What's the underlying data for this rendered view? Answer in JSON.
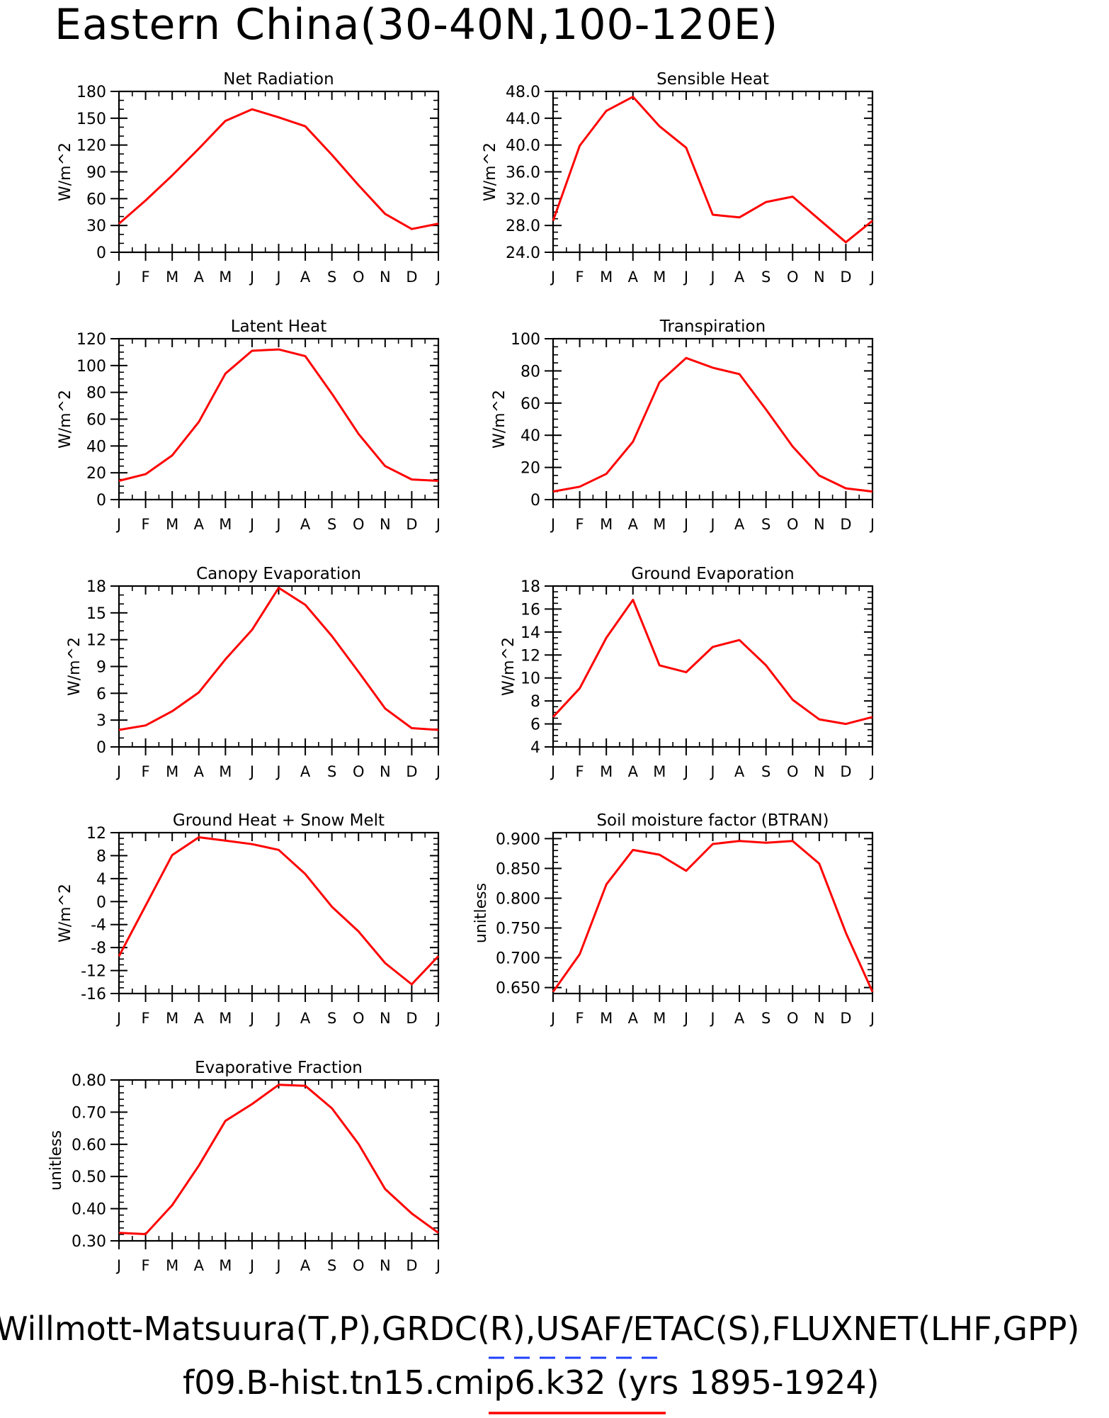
{
  "figure": {
    "title": "Eastern China(30-40N,100-120E)",
    "footer_line1": "Willmott-Matsuura(T,P),GRDC(R),USAF/ETAC(S),FLUXNET(LHF,GPP)",
    "footer_line2": "f09.B-hist.tn15.cmip6.k32 (yrs 1895-1924)",
    "line_color": "#ff0000",
    "dash_color": "#1f3fff"
  },
  "chart_data": [
    {
      "type": "line",
      "title": "Net Radiation",
      "ylabel": "W/m^2",
      "categories": [
        "J",
        "F",
        "M",
        "A",
        "M",
        "J",
        "J",
        "A",
        "S",
        "O",
        "N",
        "D",
        "J"
      ],
      "values": [
        32,
        58,
        86,
        116,
        147,
        160,
        151,
        141,
        109,
        75,
        43,
        26,
        32
      ],
      "ylim": [
        0,
        180
      ],
      "yticks": [
        "0",
        "30",
        "60",
        "90",
        "120",
        "150",
        "180"
      ],
      "yminor": 3
    },
    {
      "type": "line",
      "title": "Sensible Heat",
      "ylabel": "W/m^2",
      "categories": [
        "J",
        "F",
        "M",
        "A",
        "M",
        "J",
        "J",
        "A",
        "S",
        "O",
        "N",
        "D",
        "J"
      ],
      "values": [
        28.7,
        39.9,
        45.1,
        47.2,
        42.8,
        39.6,
        29.6,
        29.2,
        31.5,
        32.3,
        28.9,
        25.5,
        28.7
      ],
      "ylim": [
        24.0,
        48.0
      ],
      "yticks": [
        "24.0",
        "28.0",
        "32.0",
        "36.0",
        "40.0",
        "44.0",
        "48.0"
      ],
      "yminor": 4
    },
    {
      "type": "line",
      "title": "Latent Heat",
      "ylabel": "W/m^2",
      "categories": [
        "J",
        "F",
        "M",
        "A",
        "M",
        "J",
        "J",
        "A",
        "S",
        "O",
        "N",
        "D",
        "J"
      ],
      "values": [
        14,
        19,
        33,
        58,
        94,
        111,
        112,
        107,
        79,
        49,
        25,
        15,
        14
      ],
      "ylim": [
        0,
        120
      ],
      "yticks": [
        "0",
        "20",
        "40",
        "60",
        "80",
        "100",
        "120"
      ],
      "yminor": 4
    },
    {
      "type": "line",
      "title": "Transpiration",
      "ylabel": "W/m^2",
      "categories": [
        "J",
        "F",
        "M",
        "A",
        "M",
        "J",
        "J",
        "A",
        "S",
        "O",
        "N",
        "D",
        "J"
      ],
      "values": [
        5,
        8,
        16,
        36,
        73,
        88,
        82,
        78,
        56,
        33,
        15,
        7,
        5
      ],
      "ylim": [
        0,
        100
      ],
      "yticks": [
        "0",
        "20",
        "40",
        "60",
        "80",
        "100"
      ],
      "yminor": 4
    },
    {
      "type": "line",
      "title": "Canopy Evaporation",
      "ylabel": "W/m^2",
      "categories": [
        "J",
        "F",
        "M",
        "A",
        "M",
        "J",
        "J",
        "A",
        "S",
        "O",
        "N",
        "D",
        "J"
      ],
      "values": [
        1.9,
        2.4,
        4.0,
        6.1,
        9.8,
        13.1,
        17.8,
        15.9,
        12.4,
        8.4,
        4.3,
        2.1,
        1.9
      ],
      "ylim": [
        0,
        18
      ],
      "yticks": [
        "0",
        "3",
        "6",
        "9",
        "12",
        "15",
        "18"
      ],
      "yminor": 3
    },
    {
      "type": "line",
      "title": "Ground Evaporation",
      "ylabel": "W/m^2",
      "categories": [
        "J",
        "F",
        "M",
        "A",
        "M",
        "J",
        "J",
        "A",
        "S",
        "O",
        "N",
        "D",
        "J"
      ],
      "values": [
        6.6,
        9.1,
        13.5,
        16.8,
        11.1,
        10.5,
        12.7,
        13.3,
        11.1,
        8.1,
        6.4,
        6.0,
        6.6
      ],
      "ylim": [
        4,
        18
      ],
      "yticks": [
        "4",
        "6",
        "8",
        "10",
        "12",
        "14",
        "16",
        "18"
      ],
      "yminor": 4
    },
    {
      "type": "line",
      "title": "Ground Heat + Snow Melt",
      "ylabel": "W/m^2",
      "categories": [
        "J",
        "F",
        "M",
        "A",
        "M",
        "J",
        "J",
        "A",
        "S",
        "O",
        "N",
        "D",
        "J"
      ],
      "values": [
        -9.5,
        -0.7,
        8.1,
        11.2,
        10.6,
        10.0,
        9.0,
        4.8,
        -0.9,
        -5.2,
        -10.7,
        -14.4,
        -9.5
      ],
      "ylim": [
        -16,
        12
      ],
      "yticks": [
        "-16",
        "-12",
        "-8",
        "-4",
        "0",
        "4",
        "8",
        "12"
      ],
      "yminor": 4
    },
    {
      "type": "line",
      "title": "Soil moisture factor (BTRAN)",
      "ylabel": "unitless",
      "categories": [
        "J",
        "F",
        "M",
        "A",
        "M",
        "J",
        "J",
        "A",
        "S",
        "O",
        "N",
        "D",
        "J"
      ],
      "values": [
        0.643,
        0.706,
        0.823,
        0.881,
        0.873,
        0.846,
        0.891,
        0.896,
        0.893,
        0.896,
        0.858,
        0.742,
        0.643
      ],
      "ylim": [
        0.64,
        0.91
      ],
      "yticks": [
        "0.650",
        "0.700",
        "0.750",
        "0.800",
        "0.850",
        "0.900"
      ],
      "yminor": 5
    },
    {
      "type": "line",
      "title": "Evaporative Fraction",
      "ylabel": "unitless",
      "categories": [
        "J",
        "F",
        "M",
        "A",
        "M",
        "J",
        "J",
        "A",
        "S",
        "O",
        "N",
        "D",
        "J"
      ],
      "values": [
        0.325,
        0.321,
        0.411,
        0.534,
        0.673,
        0.725,
        0.785,
        0.782,
        0.712,
        0.601,
        0.461,
        0.385,
        0.325
      ],
      "ylim": [
        0.3,
        0.8
      ],
      "yticks": [
        "0.30",
        "0.40",
        "0.50",
        "0.60",
        "0.70",
        "0.80"
      ],
      "yminor": 5
    }
  ]
}
